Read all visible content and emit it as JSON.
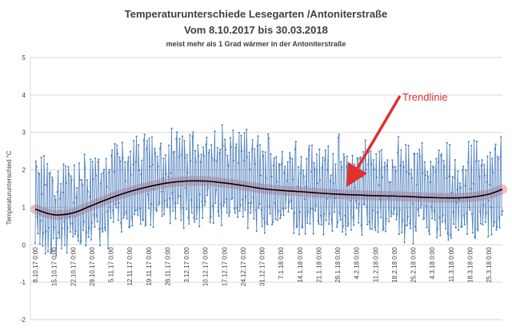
{
  "chart_data": {
    "type": "line",
    "title": "Temperaturunterschiede Lesegarten /Antoniterstraße",
    "subtitle": "Vom 8.10.2017 bis 30.03.2018",
    "subtitle2": "meist mehr als 1 Grad wärmer in der Antoniterstraße",
    "ylabel": "Temperaturunterschied °C",
    "xlabel": "",
    "ylim": [
      -2,
      5
    ],
    "yticks": [
      "-2",
      "-1",
      "0",
      "1",
      "2",
      "3",
      "4",
      "5"
    ],
    "grid": true,
    "annotation": "Trendlinie",
    "x_range": [
      "8.10.17 0:00",
      "30.3.18 0:00"
    ],
    "xtick_labels": [
      "8.10.17 0:00",
      "15.10.17 0:00",
      "22.10.17 0:00",
      "29.10.17 0:00",
      "5.11.17 0:00",
      "12.11.17 0:00",
      "19.11.17 0:00",
      "26.11.17 0:00",
      "3.12.17 0:00",
      "10.12.17 0:00",
      "17.12.17 0:00",
      "24.12.17 0:00",
      "31.12.17 0:00",
      "7.1.18 0:00",
      "14.1.18 0:00",
      "21.1.18 0:00",
      "28.1.18 0:00",
      "4.2.18 0:00",
      "11.2.18 0:00",
      "18.2.18 0:00",
      "25.2.18 0:00",
      "4.3.18 0:00",
      "11.3.18 0:00",
      "18.3.18 0:00",
      "25.3.18 0:00"
    ],
    "trend_x": [
      "8.10.17",
      "15.10.17",
      "22.10.17",
      "29.10.17",
      "5.11.17",
      "12.11.17",
      "19.11.17",
      "26.11.17",
      "3.12.17",
      "10.12.17",
      "17.12.17",
      "24.12.17",
      "31.12.17",
      "7.1.18",
      "14.1.18",
      "21.1.18",
      "28.1.18",
      "4.2.18",
      "11.2.18",
      "18.2.18",
      "25.2.18",
      "4.3.18",
      "11.3.18",
      "18.3.18",
      "25.3.18",
      "30.3.18"
    ],
    "trend_y": [
      0.95,
      0.8,
      0.85,
      1.05,
      1.25,
      1.42,
      1.55,
      1.65,
      1.7,
      1.7,
      1.65,
      1.58,
      1.5,
      1.45,
      1.42,
      1.38,
      1.35,
      1.33,
      1.31,
      1.3,
      1.28,
      1.26,
      1.25,
      1.27,
      1.35,
      1.48
    ],
    "series": [
      {
        "name": "",
        "color": "#4f81bd",
        "note": "sub-daily readings, approx. 4 per day, oscillating roughly between -0.5 and 3.5 °C"
      },
      {
        "name": "Trendlinie",
        "color": "#000000"
      }
    ]
  },
  "colors": {
    "series": "#4f81bd",
    "trend": "#000000",
    "band": "#f4a6a6",
    "annotation": "#e03030"
  }
}
